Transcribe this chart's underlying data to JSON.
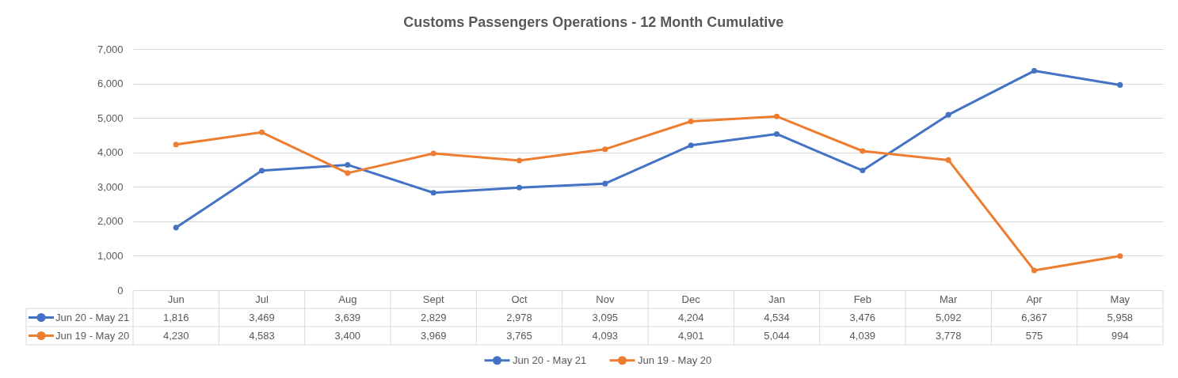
{
  "chart_data": {
    "type": "line",
    "title": "Customs Passengers Operations - 12 Month Cumulative",
    "categories": [
      "Jun",
      "Jul",
      "Aug",
      "Sept",
      "Oct",
      "Nov",
      "Dec",
      "Jan",
      "Feb",
      "Mar",
      "Apr",
      "May"
    ],
    "series": [
      {
        "name": "Jun 20 - May 21",
        "color": "#4472c4",
        "values": [
          1816,
          3469,
          3639,
          2829,
          2978,
          3095,
          4204,
          4534,
          3476,
          5092,
          6367,
          5958
        ],
        "value_labels": [
          "1,816",
          "3,469",
          "3,639",
          "2,829",
          "2,978",
          "3,095",
          "4,204",
          "4,534",
          "3,476",
          "5,092",
          "6,367",
          "5,958"
        ]
      },
      {
        "name": "Jun 19 - May 20",
        "color": "#ed7d31",
        "values": [
          4230,
          4583,
          3400,
          3969,
          3765,
          4093,
          4901,
          5044,
          4039,
          3778,
          575,
          994
        ],
        "value_labels": [
          "4,230",
          "4,583",
          "3,400",
          "3,969",
          "3,765",
          "4,093",
          "4,901",
          "5,044",
          "4,039",
          "3,778",
          "575",
          "994"
        ]
      }
    ],
    "ylim": [
      0,
      7000
    ],
    "yticks": [
      0,
      {
        "value": 1000,
        "label": "1,000"
      },
      {
        "value": 2000,
        "label": "2,000"
      },
      {
        "value": 3000,
        "label": "3,000"
      },
      {
        "value": 4000,
        "label": "4,000"
      },
      {
        "value": 5000,
        "label": "5,000"
      },
      {
        "value": 6000,
        "label": "6,000"
      },
      {
        "value": 7000,
        "label": "7,000"
      }
    ],
    "grid": "y",
    "legend": "bottom",
    "marker": "circle",
    "line_style": "solid"
  }
}
